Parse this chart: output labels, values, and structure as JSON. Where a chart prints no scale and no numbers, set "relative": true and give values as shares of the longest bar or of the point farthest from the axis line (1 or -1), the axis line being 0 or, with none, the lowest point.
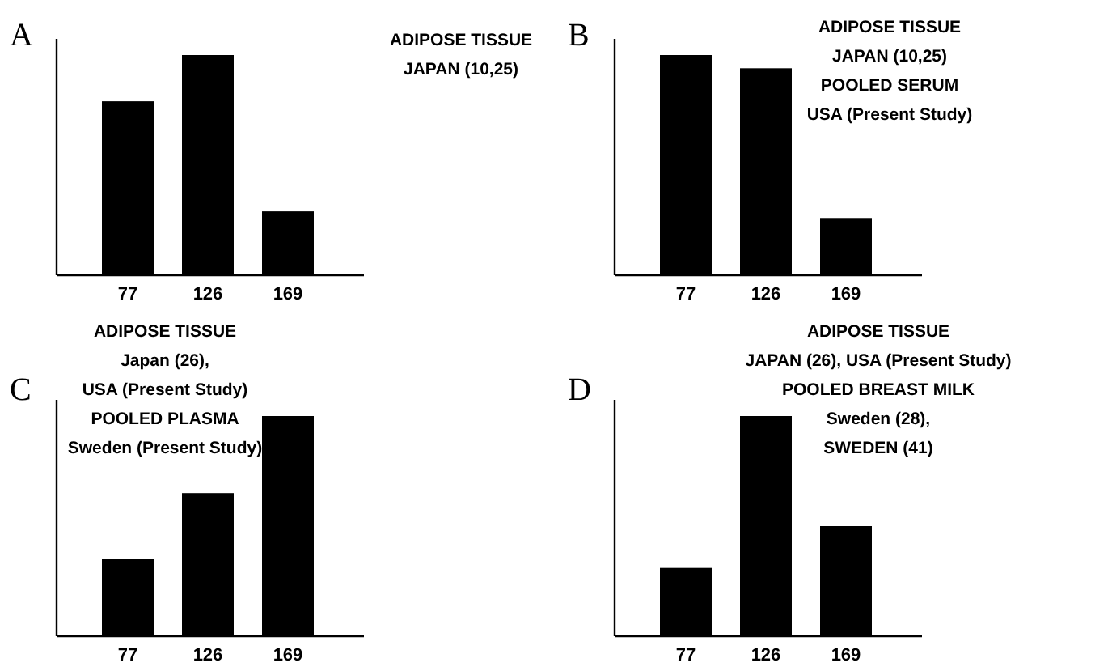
{
  "chart_data": [
    {
      "type": "bar",
      "title": "A",
      "categories": [
        "77",
        "126",
        "169"
      ],
      "values": [
        0.79,
        1,
        0.29
      ],
      "relative": true,
      "color": "#000000",
      "annotations": [
        "ADIPOSE TISSUE",
        "JAPAN (10,25)"
      ]
    },
    {
      "type": "bar",
      "title": "B",
      "categories": [
        "77",
        "126",
        "169"
      ],
      "values": [
        1,
        0.94,
        0.26
      ],
      "relative": true,
      "color": "#000000",
      "annotations": [
        "ADIPOSE TISSUE",
        "JAPAN (10,25)",
        "POOLED SERUM",
        "USA (Present Study)"
      ]
    },
    {
      "type": "bar",
      "title": "C",
      "categories": [
        "77",
        "126",
        "169"
      ],
      "values": [
        0.35,
        0.65,
        1
      ],
      "relative": true,
      "color": "#000000",
      "annotations": [
        "ADIPOSE TISSUE",
        "Japan (26),",
        "USA (Present Study)",
        "POOLED PLASMA",
        "Sweden (Present Study)"
      ]
    },
    {
      "type": "bar",
      "title": "D",
      "categories": [
        "77",
        "126",
        "169"
      ],
      "values": [
        0.31,
        1,
        0.5
      ],
      "relative": true,
      "color": "#000000",
      "annotations": [
        "ADIPOSE TISSUE",
        "JAPAN (26), USA (Present Study)",
        "POOLED BREAST MILK",
        "Sweden (28),",
        "SWEDEN (41)"
      ]
    }
  ]
}
